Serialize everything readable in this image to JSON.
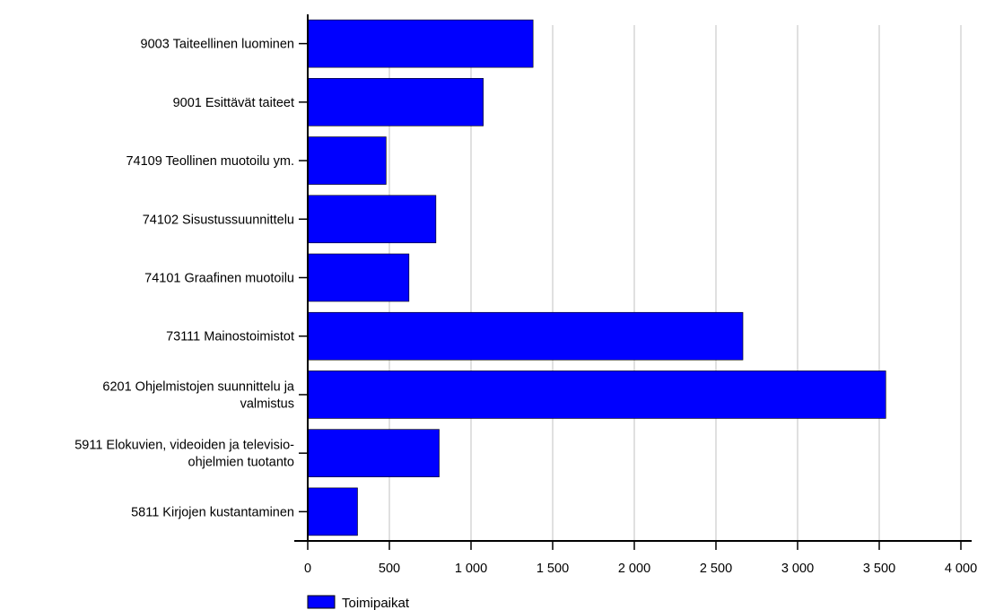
{
  "chart_data": {
    "type": "bar",
    "orientation": "horizontal",
    "categories": [
      [
        "9003 Taiteellinen luominen"
      ],
      [
        "9001 Esittävät taiteet"
      ],
      [
        "74109 Teollinen muotoilu ym."
      ],
      [
        "74102 Sisustussuunnittelu"
      ],
      [
        "74101 Graafinen muotoilu"
      ],
      [
        "73111 Mainostoimistot"
      ],
      [
        "6201 Ohjelmistojen suunnittelu ja",
        "valmistus"
      ],
      [
        "5911 Elokuvien, videoiden ja televisio-",
        "ohjelmien tuotanto"
      ],
      [
        "5811 Kirjojen kustantaminen"
      ]
    ],
    "series": [
      {
        "name": "Toimipaikat",
        "color": "#0000ff",
        "values": [
          1380,
          1075,
          480,
          785,
          620,
          2665,
          3540,
          805,
          305
        ]
      }
    ],
    "xlim": [
      0,
      4000
    ],
    "xticks": [
      0,
      500,
      1000,
      1500,
      2000,
      2500,
      3000,
      3500,
      4000
    ],
    "xtick_labels": [
      "0",
      "500",
      "1 000",
      "1 500",
      "2 000",
      "2 500",
      "3 000",
      "3 500",
      "4 000"
    ],
    "grid": "vertical",
    "grid_color": "#c0c0c0",
    "legend_position": "bottom-left"
  }
}
